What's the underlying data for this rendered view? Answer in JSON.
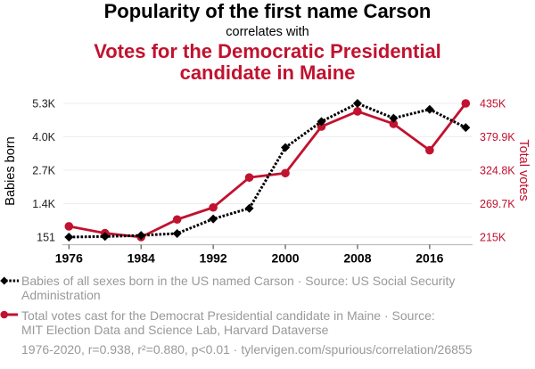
{
  "header": {
    "title": "Popularity of the first name Carson",
    "subtitle": "correlates with",
    "title2_lines": [
      "Votes for the Democratic Presidential",
      "candidate in Maine"
    ]
  },
  "colors": {
    "series_babies": "#000000",
    "series_votes": "#c1122f",
    "muted_text": "#999999"
  },
  "legend": [
    {
      "icon": "black-dotted-line-diamond",
      "lines": [
        "Babies of all sexes born in the US named Carson · Source: US Social Security",
        "Administration"
      ]
    },
    {
      "icon": "red-solid-line-circle",
      "lines": [
        "Total votes cast for the Democrat Presidential candidate in Maine · Source:",
        "MIT Election Data and Science Lab, Harvard Dataverse"
      ]
    }
  ],
  "footer": "1976-2020, r=0.938, r²=0.880, p<0.01 · tylervigen.com/spurious/correlation/26855",
  "chart_data": {
    "type": "line",
    "title": "Popularity of the first name Carson correlates with Votes for the Democratic Presidential candidate in Maine",
    "x": [
      1976,
      1980,
      1984,
      1988,
      1992,
      1996,
      2000,
      2004,
      2008,
      2012,
      2016,
      2020
    ],
    "xlim": [
      1976,
      2020
    ],
    "x_ticks": [
      1976,
      1984,
      1992,
      2000,
      2008,
      2016
    ],
    "series": [
      {
        "name": "Babies of all sexes born in the US named Carson",
        "axis": "left",
        "style": "dotted line with diamond markers",
        "color": "#000000",
        "values": [
          151,
          175,
          215,
          290,
          850,
          1260,
          3600,
          4600,
          5300,
          4730,
          5070,
          4370
        ]
      },
      {
        "name": "Total votes cast for the Democrat Presidential candidate in Maine",
        "axis": "right",
        "style": "solid line with circle markers",
        "color": "#c1122f",
        "values": [
          232279,
          220974,
          214515,
          243569,
          263420,
          312788,
          319951,
          396842,
          421923,
          401306,
          357735,
          435072
        ]
      }
    ],
    "ylabel_left": "Babies born",
    "ylabel_right": "Total votes",
    "ylim_left": [
      151,
      5300
    ],
    "ylim_right": [
      214515,
      435072
    ],
    "y_ticks_left": [
      "151",
      "1.4K",
      "2.7K",
      "4.0K",
      "5.3K"
    ],
    "y_ticks_right": [
      "215K",
      "269.7K",
      "324.8K",
      "379.9K",
      "435K"
    ],
    "grid": true,
    "legend_position": "bottom-left",
    "stats": {
      "r": 0.938,
      "r_squared": 0.88,
      "p": "<0.01",
      "range": "1976-2020"
    }
  }
}
